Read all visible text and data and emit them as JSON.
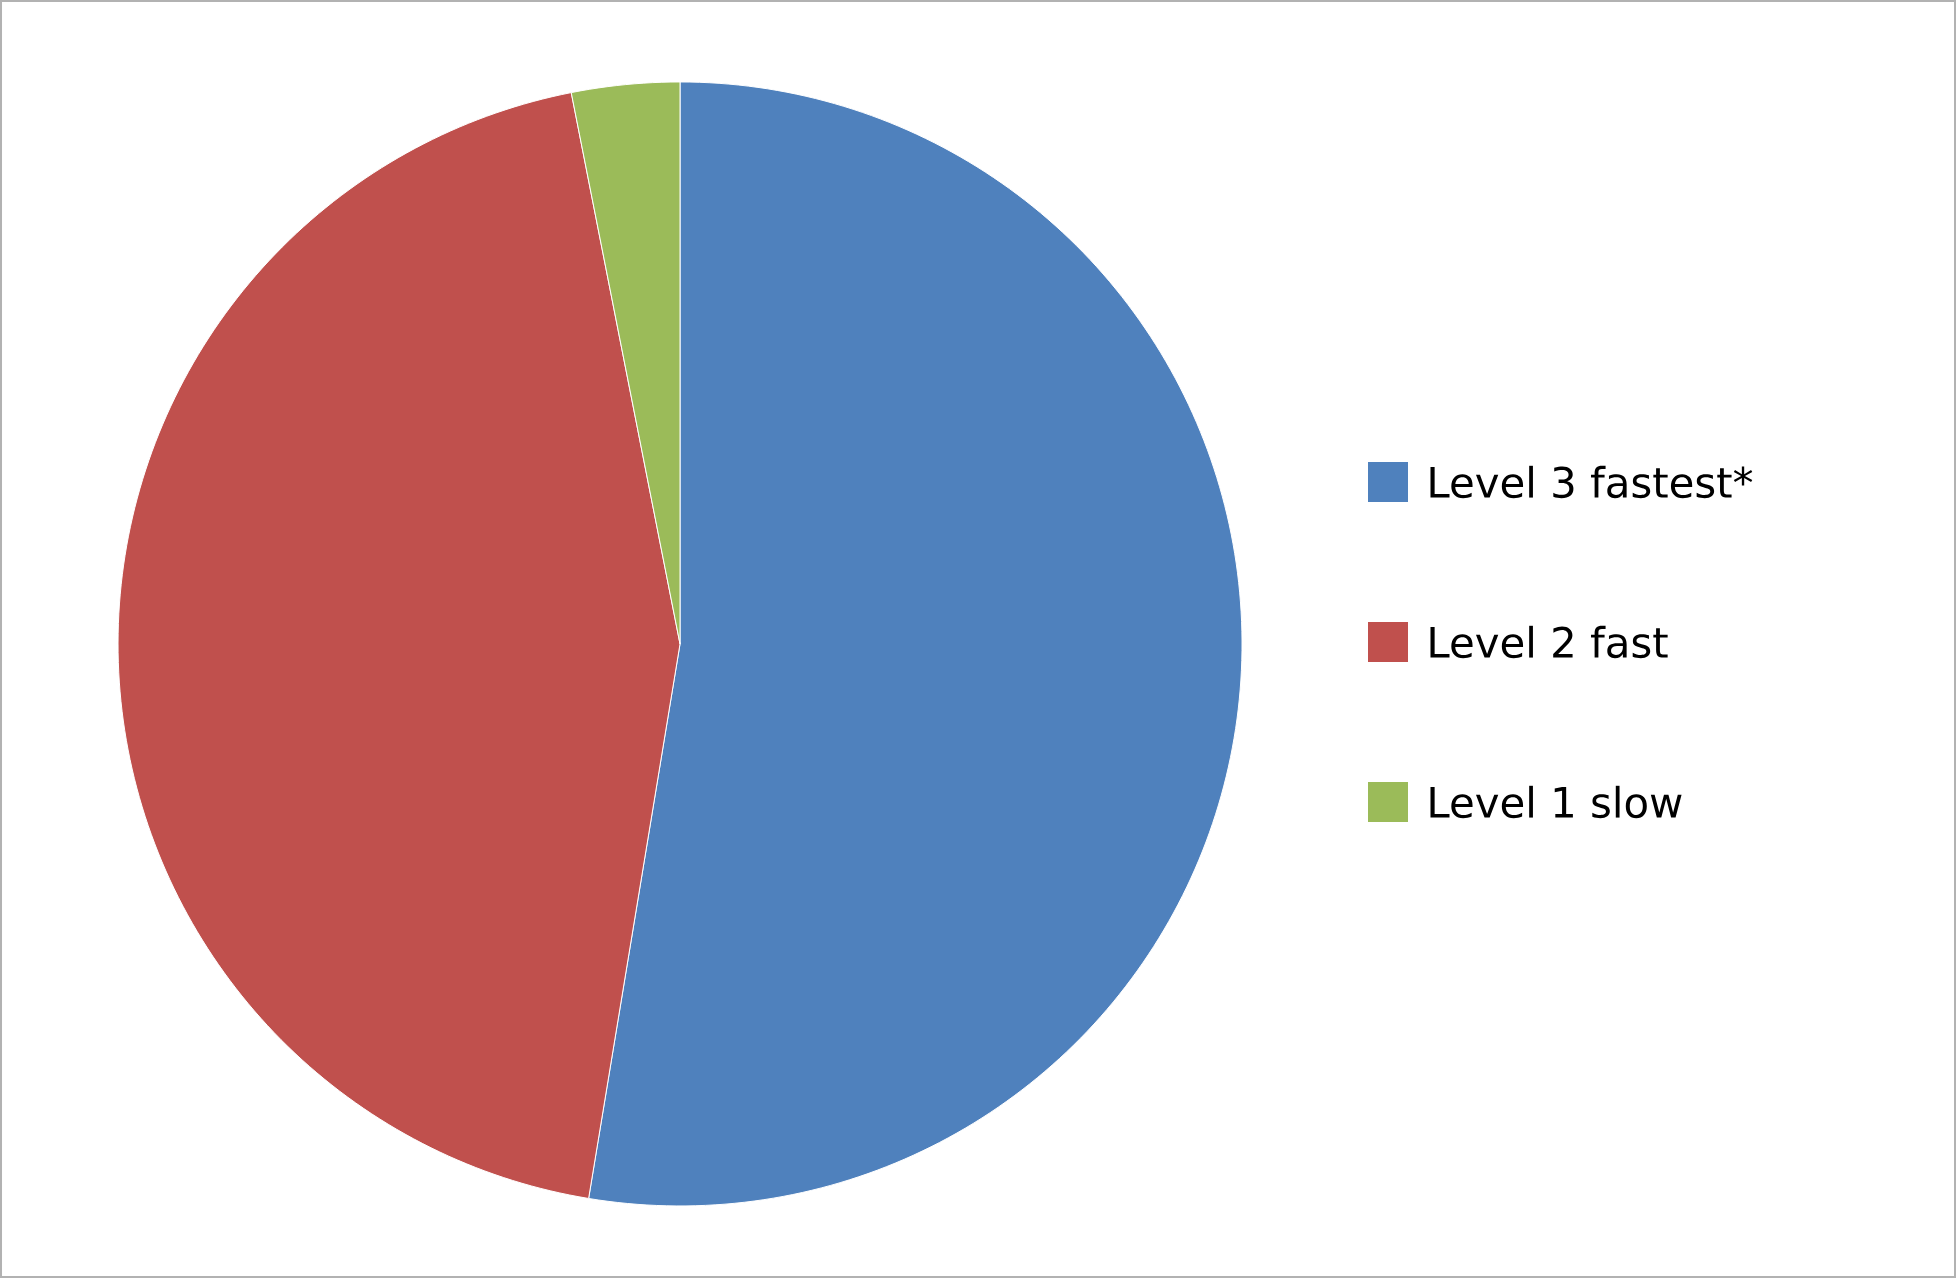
{
  "chart_data": {
    "type": "pie",
    "categories": [
      "Level 3 fastest*",
      "Level 2 fast",
      "Level 1 slow"
    ],
    "values": [
      52.6,
      44.3,
      3.1
    ],
    "colors": [
      "#4f81bd",
      "#c0504d",
      "#9bbb59"
    ],
    "legend": "right"
  }
}
